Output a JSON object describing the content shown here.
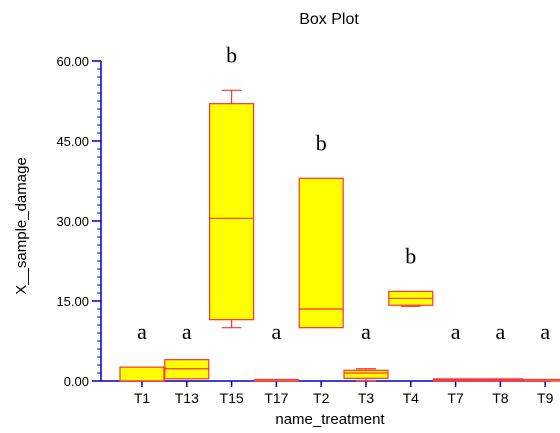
{
  "chart_data": {
    "type": "box",
    "title": "Box Plot",
    "xlabel": "name_treatment",
    "ylabel": "X__sample_damage",
    "ylim": [
      0,
      60
    ],
    "y_ticks": [
      "0.00",
      "15.00",
      "30.00",
      "45.00",
      "60.00"
    ],
    "grid": false,
    "legend": "none",
    "box_fill": "#ffff00",
    "box_stroke": "#ff3333",
    "axis_color": "#0000cc",
    "categories": [
      "T1",
      "T13",
      "T15",
      "T17",
      "T2",
      "T3",
      "T4",
      "T7",
      "T8",
      "T9"
    ],
    "boxes": [
      {
        "category": "T1",
        "min": 0.0,
        "q1": 0.0,
        "median": 0.0,
        "q3": 2.6,
        "max": 2.6,
        "group": "a"
      },
      {
        "category": "T13",
        "min": 0.4,
        "q1": 0.4,
        "median": 2.3,
        "q3": 4.0,
        "max": 4.0,
        "group": "a"
      },
      {
        "category": "T15",
        "min": 10.0,
        "q1": 11.5,
        "median": 30.5,
        "q3": 52.0,
        "max": 54.5,
        "group": "b"
      },
      {
        "category": "T17",
        "min": 0.0,
        "q1": 0.0,
        "median": 0.0,
        "q3": 0.2,
        "max": 0.2,
        "group": "a"
      },
      {
        "category": "T2",
        "min": 10.0,
        "q1": 10.0,
        "median": 13.5,
        "q3": 38.0,
        "max": 38.0,
        "group": "b"
      },
      {
        "category": "T3",
        "min": 0.0,
        "q1": 0.5,
        "median": 1.5,
        "q3": 2.0,
        "max": 2.3,
        "group": "a"
      },
      {
        "category": "T4",
        "min": 14.0,
        "q1": 14.2,
        "median": 15.5,
        "q3": 16.8,
        "max": 16.8,
        "group": "b"
      },
      {
        "category": "T7",
        "min": 0.0,
        "q1": 0.0,
        "median": 0.2,
        "q3": 0.4,
        "max": 0.4,
        "group": "a"
      },
      {
        "category": "T8",
        "min": 0.0,
        "q1": 0.0,
        "median": 0.2,
        "q3": 0.4,
        "max": 0.4,
        "group": "a"
      },
      {
        "category": "T9",
        "min": 0.0,
        "q1": 0.0,
        "median": 0.0,
        "q3": 0.2,
        "max": 0.2,
        "group": "a"
      }
    ]
  }
}
